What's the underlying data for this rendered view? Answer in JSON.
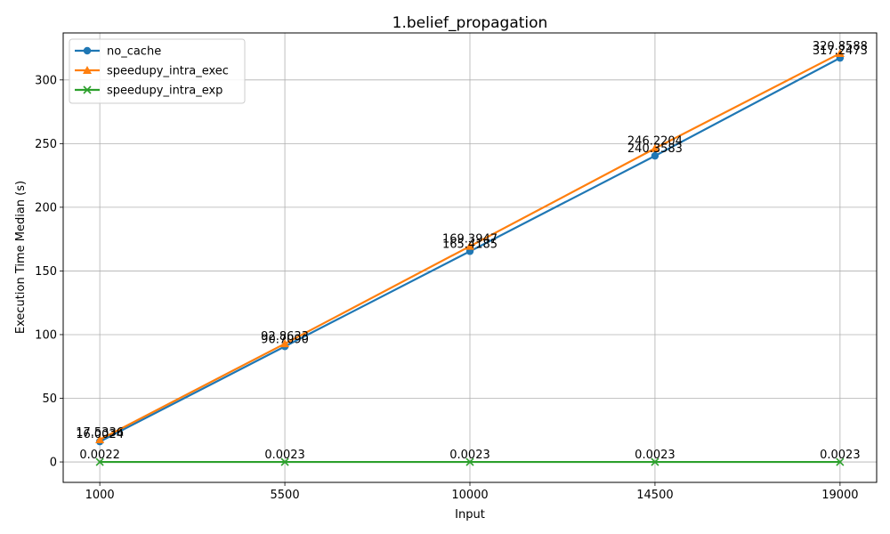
{
  "chart_data": {
    "type": "line",
    "title": "1.belief_propagation",
    "xlabel": "Input",
    "ylabel": "Execution Time Median (s)",
    "categories": [
      "1000",
      "5500",
      "10000",
      "14500",
      "19000"
    ],
    "ylim": [
      -16.04,
      336.9
    ],
    "yticks": [
      0,
      50,
      100,
      150,
      200,
      250,
      300
    ],
    "grid": true,
    "legend_position": "top-left",
    "series": [
      {
        "name": "no_cache",
        "color": "#1f77b4",
        "marker": "circle",
        "values": [
          16.0024,
          90.709,
          165.4185,
          240.3583,
          317.2473
        ],
        "labels": [
          "16.0024",
          "90.7090",
          "165.4185",
          "240.3583",
          "317.2473"
        ]
      },
      {
        "name": "speedupy_intra_exec",
        "color": "#ff7f0e",
        "marker": "triangle",
        "values": [
          17.5336,
          92.8633,
          169.3947,
          246.2204,
          320.8588
        ],
        "labels": [
          "17.5336",
          "92.8633",
          "169.3947",
          "246.2204",
          "320.8588"
        ]
      },
      {
        "name": "speedupy_intra_exp",
        "color": "#2ca02c",
        "marker": "x",
        "values": [
          0.0022,
          0.0023,
          0.0023,
          0.0023,
          0.0023
        ],
        "labels": [
          "0.0022",
          "0.0023",
          "0.0023",
          "0.0023",
          "0.0023"
        ]
      }
    ]
  }
}
